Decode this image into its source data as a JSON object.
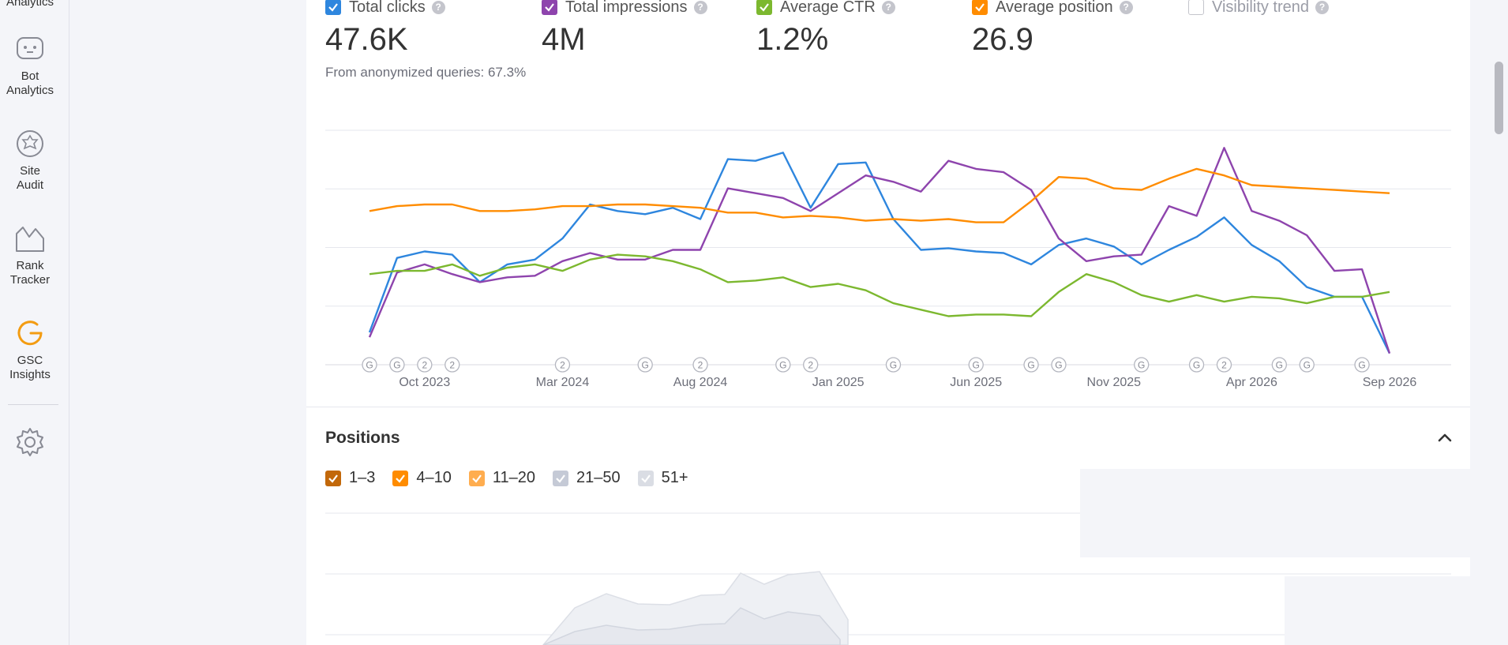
{
  "sidebar": {
    "top_partial_label": "Analytics",
    "items": [
      {
        "label_line1": "Bot",
        "label_line2": "Analytics",
        "icon": "bot-icon"
      },
      {
        "label_line1": "Site",
        "label_line2": "Audit",
        "icon": "site-audit-icon"
      },
      {
        "label_line1": "Rank",
        "label_line2": "Tracker",
        "icon": "rank-tracker-icon"
      },
      {
        "label_line1": "GSC",
        "label_line2": "Insights",
        "icon": "gsc-icon"
      }
    ],
    "settings_icon": "gear-icon"
  },
  "metrics": [
    {
      "label": "Total clicks",
      "value": "47.6K",
      "checked": true,
      "color": "#2e86de"
    },
    {
      "label": "Total impressions",
      "value": "4M",
      "checked": true,
      "color": "#8e44ad"
    },
    {
      "label": "Average CTR",
      "value": "1.2%",
      "checked": true,
      "color": "#7cb82f"
    },
    {
      "label": "Average position",
      "value": "26.9",
      "checked": true,
      "color": "#ff8c00"
    },
    {
      "label": "Visibility trend",
      "value": "",
      "checked": false,
      "color": "#c4c5cc"
    }
  ],
  "anonymized_note": "From anonymized queries: 67.3%",
  "chart_data": {
    "type": "line",
    "x_tick_labels": [
      "Oct 2023",
      "Mar 2024",
      "Aug 2024",
      "Jan 2025",
      "Jun 2025",
      "Nov 2025",
      "Apr 2026",
      "Sep 2026"
    ],
    "event_markers": [
      "G",
      "G",
      "2",
      "2",
      "2",
      "G",
      "2",
      "G",
      "2",
      "G",
      "G",
      "G",
      "G",
      "G",
      "G",
      "2",
      "G",
      "G",
      "G"
    ],
    "grid": true,
    "series": [
      {
        "name": "Total clicks",
        "color": "#2e86de",
        "values": [
          20,
          66,
          70,
          68,
          51,
          62,
          65,
          78,
          99,
          95,
          93,
          97,
          90,
          127,
          126,
          131,
          97,
          124,
          125,
          90,
          71,
          72,
          70,
          69,
          62,
          74,
          78,
          73,
          62,
          71,
          79,
          91,
          74,
          64,
          48,
          42,
          42,
          7
        ]
      },
      {
        "name": "Total impressions",
        "color": "#8e44ad",
        "values": [
          17,
          57,
          62,
          56,
          51,
          54,
          55,
          64,
          69,
          65,
          65,
          71,
          71,
          109,
          106,
          103,
          95,
          106,
          117,
          113,
          107,
          126,
          121,
          119,
          108,
          78,
          64,
          67,
          68,
          98,
          92,
          134,
          95,
          89,
          80,
          58,
          59,
          7
        ]
      },
      {
        "name": "Average CTR",
        "color": "#7cb82f",
        "values": [
          56,
          58,
          58,
          62,
          55,
          60,
          62,
          58,
          65,
          68,
          67,
          64,
          59,
          51,
          52,
          54,
          48,
          50,
          46,
          38,
          34,
          30,
          31,
          31,
          30,
          45,
          56,
          51,
          43,
          39,
          43,
          39,
          42,
          41,
          38,
          42,
          42,
          45
        ]
      },
      {
        "name": "Average position",
        "color": "#ff8c00",
        "values": [
          95,
          98,
          99,
          99,
          95,
          95,
          96,
          98,
          98,
          99,
          99,
          98,
          97,
          94,
          94,
          91,
          92,
          91,
          89,
          90,
          89,
          90,
          88,
          88,
          101,
          116,
          115,
          109,
          108,
          115,
          121,
          117,
          111,
          110,
          109,
          108,
          107,
          106
        ]
      }
    ]
  },
  "positions": {
    "title": "Positions",
    "legend": [
      {
        "label": "1–3",
        "color": "#c2680a"
      },
      {
        "label": "4–10",
        "color": "#ff8c00"
      },
      {
        "label": "11–20",
        "color": "#ffad4f"
      },
      {
        "label": "21–50",
        "color": "#c5cad6"
      },
      {
        "label": "51+",
        "color": "#dadde4"
      }
    ]
  }
}
